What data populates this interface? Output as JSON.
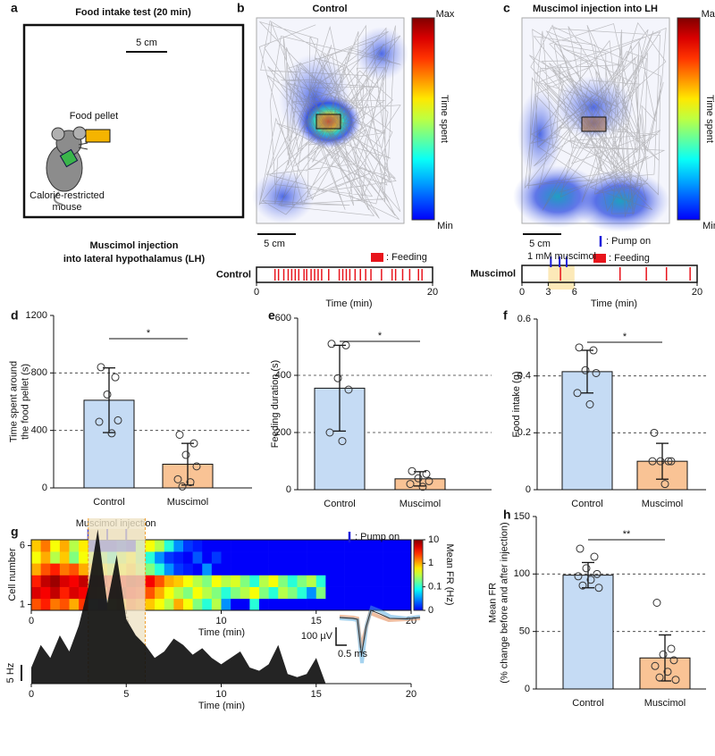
{
  "panel_labels": [
    "a",
    "b",
    "c",
    "d",
    "e",
    "f",
    "g",
    "h"
  ],
  "panel_a": {
    "title": "Food intake test (20 min)",
    "scale": "5 cm",
    "pellet": "Food pellet",
    "mouse": [
      "Calorie-restricted",
      "mouse"
    ],
    "caption": [
      "Muscimol injection",
      "into lateral hypothalamus (LH)"
    ]
  },
  "panel_b": {
    "title": "Control",
    "colorbar": {
      "max": "Max",
      "label": "Time spent",
      "min": "Min"
    },
    "scale": "5 cm",
    "legend_feeding": ": Feeding",
    "raster_label": "Control",
    "xlim": [
      0,
      20
    ],
    "xticks": [
      0,
      20
    ],
    "xlabel": "Time (min)",
    "feeding_color": "#e8141c",
    "feeding_events": [
      2.1,
      2.5,
      3.1,
      3.6,
      4.0,
      4.4,
      4.8,
      5.4,
      5.7,
      6.2,
      6.6,
      7.0,
      7.4,
      8.2,
      9.4,
      9.8,
      10.2,
      10.6,
      11.2,
      11.8,
      12.4,
      13.0,
      14.2,
      15.4,
      15.8,
      16.6,
      17.4,
      18.4,
      18.8
    ]
  },
  "panel_c": {
    "title": "Muscimol injection into LH",
    "colorbar": {
      "max": "Max",
      "label": "Time spent",
      "min": "Min"
    },
    "scale": "5 cm",
    "legend_pump": ": Pump on",
    "legend_feeding": ": Feeding",
    "drug": "1 mM muscimol",
    "raster_label": "Muscimol",
    "xlim": [
      0,
      20
    ],
    "xticks": [
      0,
      3,
      6,
      20
    ],
    "xlabel": "Time (min)",
    "injection_window": [
      3,
      6
    ],
    "pump_color": "#1a1adb",
    "feeding_color": "#e8141c",
    "pump_events": [
      3.3,
      4.3,
      5.1
    ],
    "feeding_events": [
      4.4,
      11.2,
      14.2,
      16.5,
      19.2
    ]
  },
  "panel_g": {
    "injection_label": "Muscimol injection",
    "legend_pump": ": Pump on",
    "pump_events": [
      3,
      4,
      5
    ],
    "injection_window": [
      3,
      6
    ],
    "ylabel": "Cell number",
    "yticks": [
      1,
      6
    ],
    "xlim": [
      0,
      20
    ],
    "xticks": [
      0,
      5,
      10,
      15,
      20
    ],
    "xlabel": "Time (min)",
    "colorbar_label": "Mean FR (Hz)",
    "colorbar_ticks": [
      0,
      0.1,
      1,
      10
    ],
    "heatmap": [
      [
        2,
        3,
        1.5,
        2,
        1,
        2.5,
        0.05,
        0.02,
        0.5,
        1,
        2,
        1.5,
        0.8,
        0.5,
        0.3,
        1,
        0.5,
        0.2,
        0.1,
        0.3,
        0.05,
        0,
        0,
        0.1,
        0,
        0,
        0,
        0,
        0,
        0,
        0,
        0,
        0,
        0,
        0,
        0,
        0,
        0,
        0,
        0
      ],
      [
        5,
        4,
        6,
        3,
        5,
        4,
        3,
        2,
        5,
        6,
        4,
        3,
        2,
        1,
        0.5,
        0.3,
        0.2,
        0.5,
        0.3,
        0.2,
        0.1,
        0.2,
        0.3,
        0.5,
        0.2,
        0.1,
        0.3,
        0.2,
        0.1,
        0.05,
        0.2,
        0,
        0,
        0,
        0,
        0,
        0,
        0,
        0,
        0
      ],
      [
        3,
        6,
        8,
        5,
        4,
        6,
        7,
        5,
        3,
        4,
        6,
        5,
        4,
        2,
        1,
        0.8,
        0.5,
        0.3,
        0.2,
        0.5,
        0.3,
        0.4,
        0.2,
        0.1,
        0.3,
        0.5,
        0.2,
        0.1,
        0.2,
        0.3,
        0.1,
        0,
        0,
        0,
        0,
        0,
        0,
        0,
        0,
        0
      ],
      [
        1,
        2,
        3,
        1.5,
        2,
        1,
        0.8,
        0.5,
        0.3,
        0.5,
        0.8,
        0.3,
        0.2,
        0.1,
        0.05,
        0.02,
        0.01,
        0,
        0.05,
        0,
        0,
        0,
        0,
        0,
        0,
        0,
        0,
        0,
        0,
        0,
        0,
        0,
        0,
        0,
        0,
        0,
        0,
        0,
        0,
        0
      ],
      [
        0.5,
        1,
        0.3,
        0.8,
        0.2,
        0.5,
        0.3,
        0.2,
        0.1,
        0.3,
        0.5,
        0.2,
        0.1,
        0.05,
        0.02,
        0.01,
        0,
        0.03,
        0,
        0.02,
        0,
        0,
        0,
        0,
        0,
        0,
        0,
        0,
        0,
        0,
        0,
        0,
        0,
        0,
        0,
        0,
        0,
        0,
        0,
        0
      ],
      [
        0.8,
        1.5,
        0.5,
        1,
        0.3,
        0.6,
        0.01,
        0.01,
        0.01,
        0.02,
        0.01,
        0.2,
        0.5,
        0.3,
        0.1,
        0.05,
        0.02,
        0.01,
        0,
        0,
        0,
        0,
        0,
        0,
        0,
        0,
        0,
        0,
        0,
        0,
        0,
        0,
        0,
        0,
        0,
        0,
        0,
        0,
        0,
        0
      ]
    ],
    "trace": {
      "x": [
        0,
        0.5,
        1,
        1.5,
        2,
        2.5,
        3,
        3.5,
        4,
        4.5,
        5,
        5.5,
        6,
        6.5,
        7,
        7.5,
        8,
        8.5,
        9,
        9.5,
        10,
        10.5,
        11,
        11.5,
        12,
        12.5,
        13,
        13.5,
        14,
        14.5,
        15,
        15.5,
        16,
        16.5,
        17,
        17.5,
        18,
        18.5,
        19,
        19.5,
        20
      ],
      "values": [
        5,
        12,
        8,
        15,
        10,
        18,
        30,
        48,
        25,
        40,
        20,
        15,
        12,
        8,
        10,
        14,
        12,
        9,
        11,
        8,
        6,
        8,
        10,
        5,
        4,
        6,
        12,
        3,
        2,
        3,
        8,
        0,
        0,
        0,
        0,
        0,
        0,
        0,
        0,
        0,
        0
      ]
    },
    "scale_bar": {
      "value": 5,
      "label": "5 Hz"
    },
    "wave_scale_v": "100 µV",
    "wave_scale_t": "0.5 ms"
  },
  "chart_data": [
    {
      "type": "bar",
      "ylabel": [
        "Time spent around",
        "the food pellet (s)"
      ],
      "categories": [
        "Control",
        "Muscimol"
      ],
      "values": [
        610,
        165
      ],
      "errors": [
        225,
        145
      ],
      "colors": [
        "#c5dbf4",
        "#f9c395"
      ],
      "points": [
        [
          840,
          770,
          650,
          470,
          460,
          380
        ],
        [
          370,
          310,
          230,
          150,
          60,
          40,
          10
        ]
      ],
      "ylim": [
        0,
        1200
      ],
      "yticks": [
        0,
        400,
        800,
        1200
      ],
      "grid": true,
      "significance": "*"
    },
    {
      "type": "bar",
      "ylabel": [
        "Feeding duration (s)"
      ],
      "categories": [
        "Control",
        "Muscimol"
      ],
      "values": [
        355,
        38
      ],
      "errors": [
        150,
        25
      ],
      "colors": [
        "#c5dbf4",
        "#f9c395"
      ],
      "points": [
        [
          510,
          505,
          390,
          350,
          200,
          170
        ],
        [
          65,
          55,
          40,
          30,
          20,
          10
        ]
      ],
      "ylim": [
        0,
        600
      ],
      "yticks": [
        0,
        200,
        400,
        600
      ],
      "grid": true,
      "significance": "*"
    },
    {
      "type": "bar",
      "ylabel": [
        "Food intake (g)"
      ],
      "categories": [
        "Control",
        "Muscimol"
      ],
      "values": [
        0.415,
        0.1
      ],
      "errors": [
        0.075,
        0.063
      ],
      "colors": [
        "#c5dbf4",
        "#f9c395"
      ],
      "points": [
        [
          0.5,
          0.49,
          0.42,
          0.41,
          0.34,
          0.3
        ],
        [
          0.2,
          0.1,
          0.1,
          0.1,
          0.1,
          0.02
        ]
      ],
      "ylim": [
        0,
        0.6
      ],
      "yticks": [
        0,
        0.2,
        0.4,
        0.6
      ],
      "grid": true,
      "significance": "*"
    },
    {
      "type": "bar",
      "ylabel": [
        "Mean FR",
        "(% change before and after injection)"
      ],
      "categories": [
        "Control",
        "Muscimol"
      ],
      "values": [
        99,
        27
      ],
      "errors": [
        11,
        20
      ],
      "colors": [
        "#c5dbf4",
        "#f9c395"
      ],
      "points": [
        [
          122,
          115,
          105,
          100,
          98,
          95,
          90,
          88
        ],
        [
          75,
          35,
          30,
          25,
          20,
          15,
          10,
          8
        ]
      ],
      "ylim": [
        0,
        150
      ],
      "yticks": [
        0,
        50,
        100,
        150
      ],
      "grid": true,
      "significance": "**"
    }
  ]
}
